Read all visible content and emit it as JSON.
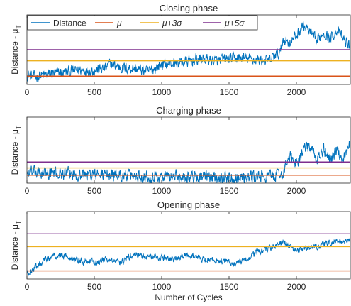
{
  "colors": {
    "distance": "#0072BD",
    "mu": "#D95319",
    "mu3": "#EDB120",
    "mu5": "#7E2F8E",
    "axis": "#262626"
  },
  "legend": {
    "location": "top-left",
    "items": [
      {
        "key": "distance",
        "label": "Distance",
        "math": false
      },
      {
        "key": "mu",
        "label": "μ",
        "math": true
      },
      {
        "key": "mu3",
        "label": "μ+3σ",
        "math": true
      },
      {
        "key": "mu5",
        "label": "μ+5σ",
        "math": true
      }
    ]
  },
  "chart_data": [
    {
      "type": "line",
      "title": "Closing phase",
      "ylabel": "Distance - μT",
      "xlabel": "",
      "xlim": [
        0,
        2400
      ],
      "xticks": [
        0,
        500,
        1000,
        1500,
        2000
      ],
      "ylim": [
        0,
        10
      ],
      "yticks": [],
      "thresholds": {
        "mu": 1.2,
        "mu3": 3.4,
        "mu5": 5.0
      },
      "series": [
        {
          "name": "Distance",
          "points": [
            [
              0,
              1.4
            ],
            [
              60,
              1.1
            ],
            [
              120,
              1.3
            ],
            [
              200,
              1.6
            ],
            [
              300,
              1.8
            ],
            [
              400,
              2.1
            ],
            [
              500,
              2.0
            ],
            [
              580,
              2.3
            ],
            [
              620,
              3.0
            ],
            [
              700,
              2.4
            ],
            [
              800,
              2.3
            ],
            [
              900,
              1.9
            ],
            [
              950,
              2.3
            ],
            [
              1000,
              2.9
            ],
            [
              1100,
              3.1
            ],
            [
              1200,
              3.3
            ],
            [
              1300,
              3.7
            ],
            [
              1400,
              3.4
            ],
            [
              1500,
              3.7
            ],
            [
              1600,
              3.8
            ],
            [
              1700,
              3.6
            ],
            [
              1800,
              3.4
            ],
            [
              1840,
              4.2
            ],
            [
              1880,
              4.5
            ],
            [
              1900,
              6.5
            ],
            [
              1950,
              6.0
            ],
            [
              2000,
              7.0
            ],
            [
              2050,
              8.5
            ],
            [
              2100,
              7.5
            ],
            [
              2150,
              6.2
            ],
            [
              2200,
              7.5
            ],
            [
              2250,
              6.6
            ],
            [
              2300,
              7.8
            ],
            [
              2350,
              6.5
            ],
            [
              2400,
              5.5
            ]
          ],
          "noise": 1.1
        }
      ]
    },
    {
      "type": "line",
      "title": "Charging phase",
      "ylabel": "Distance - μT",
      "xlabel": "",
      "xlim": [
        0,
        2400
      ],
      "xticks": [
        0,
        500,
        1000,
        1500,
        2000
      ],
      "ylim": [
        0,
        10
      ],
      "yticks": [],
      "thresholds": {
        "mu": 1.2,
        "mu3": 2.3,
        "mu5": 3.2
      },
      "series": [
        {
          "name": "Distance",
          "points": [
            [
              0,
              1.6
            ],
            [
              200,
              1.5
            ],
            [
              400,
              1.3
            ],
            [
              600,
              1.3
            ],
            [
              800,
              1.1
            ],
            [
              1000,
              1.0
            ],
            [
              1200,
              1.0
            ],
            [
              1400,
              0.9
            ],
            [
              1600,
              0.9
            ],
            [
              1800,
              1.0
            ],
            [
              1900,
              1.4
            ],
            [
              1950,
              4.0
            ],
            [
              2000,
              3.0
            ],
            [
              2050,
              5.0
            ],
            [
              2100,
              5.5
            ],
            [
              2150,
              3.5
            ],
            [
              2200,
              5.0
            ],
            [
              2250,
              3.8
            ],
            [
              2300,
              4.8
            ],
            [
              2350,
              3.8
            ],
            [
              2400,
              6.0
            ]
          ],
          "noise": 1.3
        }
      ]
    },
    {
      "type": "line",
      "title": "Opening phase",
      "ylabel": "Distance - μT",
      "xlabel": "Number of Cycles",
      "xlim": [
        0,
        2400
      ],
      "xticks": [
        0,
        500,
        1000,
        1500,
        2000
      ],
      "ylim": [
        0,
        10
      ],
      "yticks": [],
      "thresholds": {
        "mu": 1.2,
        "mu3": 4.8,
        "mu5": 6.7
      },
      "series": [
        {
          "name": "Distance",
          "points": [
            [
              0,
              0.8
            ],
            [
              50,
              1.5
            ],
            [
              100,
              2.5
            ],
            [
              200,
              3.5
            ],
            [
              300,
              3.4
            ],
            [
              400,
              2.7
            ],
            [
              500,
              2.5
            ],
            [
              600,
              2.9
            ],
            [
              700,
              2.3
            ],
            [
              750,
              3.2
            ],
            [
              800,
              3.6
            ],
            [
              900,
              3.4
            ],
            [
              1000,
              3.2
            ],
            [
              1100,
              2.9
            ],
            [
              1200,
              3.6
            ],
            [
              1300,
              3.0
            ],
            [
              1400,
              2.8
            ],
            [
              1500,
              2.5
            ],
            [
              1550,
              2.2
            ],
            [
              1600,
              2.6
            ],
            [
              1700,
              3.9
            ],
            [
              1800,
              4.5
            ],
            [
              1900,
              5.5
            ],
            [
              1950,
              4.8
            ],
            [
              2000,
              4.2
            ],
            [
              2100,
              4.6
            ],
            [
              2200,
              5.1
            ],
            [
              2300,
              5.6
            ],
            [
              2400,
              5.6
            ]
          ],
          "noise": 0.65
        }
      ]
    }
  ]
}
